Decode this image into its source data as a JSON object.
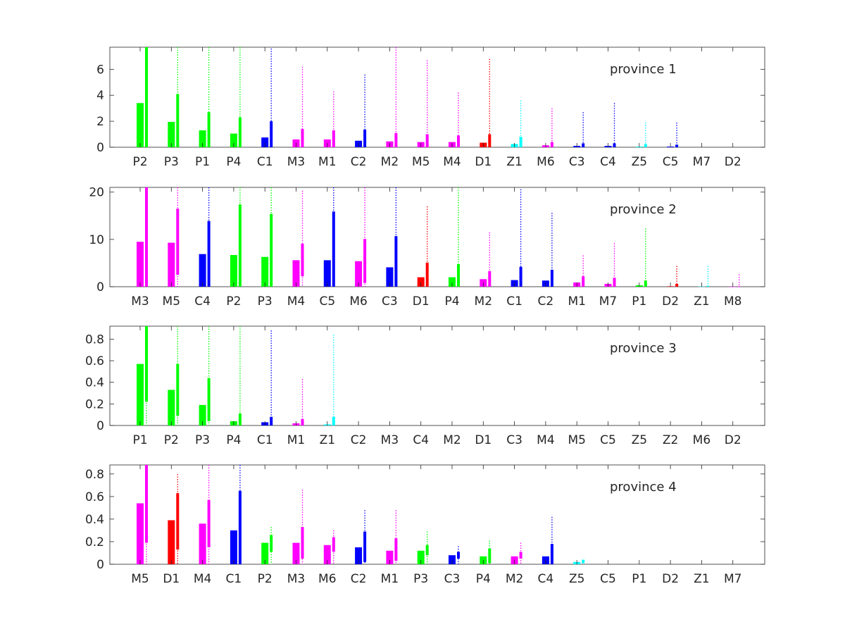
{
  "colors": {
    "P": "#00ff00",
    "C": "#0000ff",
    "M": "#ff00ff",
    "D": "#ff0000",
    "Z": "#00ffff"
  },
  "chart_data": [
    {
      "type": "bar",
      "annotation": "province 1",
      "ylim": [
        0,
        7.7
      ],
      "yticks": [
        0,
        2,
        4,
        6
      ],
      "categories": [
        "P2",
        "P3",
        "P1",
        "P4",
        "C1",
        "M3",
        "M1",
        "C2",
        "M2",
        "M5",
        "M4",
        "D1",
        "Z1",
        "M6",
        "C3",
        "C4",
        "Z5",
        "C5",
        "M7",
        "D2"
      ],
      "values": [
        3.4,
        1.95,
        1.3,
        1.05,
        0.75,
        0.6,
        0.6,
        0.5,
        0.45,
        0.4,
        0.4,
        0.35,
        0.25,
        0.15,
        0.1,
        0.1,
        0.05,
        0.05,
        0,
        0
      ],
      "range_low": [
        0,
        0,
        0,
        0,
        0,
        0,
        0,
        0,
        0,
        0,
        0,
        0,
        0,
        0,
        0,
        0,
        0,
        0,
        0,
        0
      ],
      "range_high": [
        7.7,
        4.1,
        2.7,
        2.3,
        2.0,
        1.4,
        1.3,
        1.35,
        1.1,
        1.0,
        0.9,
        1.0,
        0.8,
        0.4,
        0.3,
        0.3,
        0.25,
        0.2,
        0,
        0
      ],
      "whisker_top": [
        7.7,
        7.7,
        7.7,
        7.7,
        7.6,
        6.2,
        4.3,
        5.6,
        7.7,
        6.7,
        4.2,
        6.8,
        3.6,
        3.0,
        2.7,
        3.4,
        1.9,
        1.9,
        0,
        0
      ]
    },
    {
      "type": "bar",
      "annotation": "province 2",
      "ylim": [
        0,
        21
      ],
      "yticks": [
        0,
        10,
        20
      ],
      "categories": [
        "M3",
        "M5",
        "C4",
        "P2",
        "P3",
        "M4",
        "C5",
        "M6",
        "C3",
        "D1",
        "P4",
        "M2",
        "C1",
        "C2",
        "M1",
        "M7",
        "P1",
        "D2",
        "Z1",
        "M8"
      ],
      "values": [
        9.5,
        9.3,
        6.9,
        6.7,
        6.3,
        5.6,
        5.6,
        5.4,
        4.1,
        2.0,
        2.0,
        1.6,
        1.4,
        1.3,
        0.9,
        0.6,
        0.3,
        0.1,
        0.05,
        0.02
      ],
      "range_low": [
        0,
        2.5,
        0,
        0,
        0,
        2.2,
        0,
        0.8,
        0,
        0,
        0,
        0,
        0,
        0,
        0,
        0,
        0,
        0,
        0,
        0
      ],
      "range_high": [
        21,
        16.5,
        13.9,
        17.4,
        15.4,
        9.1,
        15.9,
        10.1,
        10.7,
        5.1,
        4.8,
        3.3,
        4.2,
        3.6,
        2.2,
        1.9,
        1.3,
        0.6,
        0.2,
        0.1
      ],
      "whisker_top": [
        21,
        21,
        21,
        21,
        21,
        20.3,
        21,
        21,
        21,
        17.0,
        21,
        11.5,
        20.6,
        15.6,
        6.6,
        9.2,
        12.3,
        4.4,
        4.4,
        2.6
      ]
    },
    {
      "type": "bar",
      "annotation": "province 3",
      "ylim": [
        0,
        0.92
      ],
      "yticks": [
        0,
        0.2,
        0.4,
        0.6,
        0.8
      ],
      "categories": [
        "P1",
        "P2",
        "P3",
        "P4",
        "C1",
        "M1",
        "Z1",
        "C2",
        "M3",
        "C4",
        "M2",
        "D1",
        "C3",
        "M4",
        "M5",
        "C5",
        "Z5",
        "Z2",
        "M6",
        "D2"
      ],
      "values": [
        0.57,
        0.33,
        0.19,
        0.04,
        0.03,
        0.02,
        0.01,
        0,
        0,
        0,
        0,
        0,
        0,
        0,
        0,
        0,
        0,
        0,
        0,
        0
      ],
      "range_low": [
        0.22,
        0.09,
        0.04,
        0,
        0,
        0,
        0,
        0,
        0,
        0,
        0,
        0,
        0,
        0,
        0,
        0,
        0,
        0,
        0,
        0
      ],
      "range_high": [
        0.92,
        0.57,
        0.44,
        0.11,
        0.08,
        0.06,
        0.08,
        0,
        0,
        0,
        0,
        0,
        0,
        0,
        0,
        0,
        0,
        0,
        0,
        0
      ],
      "whisker_top": [
        0.92,
        0.92,
        0.92,
        0.92,
        0.88,
        0.43,
        0.84,
        0,
        0,
        0,
        0,
        0,
        0,
        0,
        0,
        0,
        0,
        0,
        0,
        0
      ]
    },
    {
      "type": "bar",
      "annotation": "province 4",
      "ylim": [
        0,
        0.88
      ],
      "yticks": [
        0,
        0.2,
        0.4,
        0.6,
        0.8
      ],
      "categories": [
        "M5",
        "D1",
        "M4",
        "C1",
        "P2",
        "M3",
        "M6",
        "C2",
        "M1",
        "P3",
        "C3",
        "P4",
        "M2",
        "C4",
        "Z5",
        "C5",
        "P1",
        "D2",
        "Z1",
        "M7"
      ],
      "values": [
        0.54,
        0.39,
        0.36,
        0.3,
        0.19,
        0.19,
        0.17,
        0.15,
        0.12,
        0.12,
        0.08,
        0.07,
        0.07,
        0.07,
        0.02,
        0,
        0,
        0,
        0,
        0
      ],
      "range_low": [
        0.19,
        0.13,
        0.15,
        0,
        0.11,
        0.05,
        0.11,
        0.02,
        0.03,
        0.08,
        0.05,
        0.01,
        0.05,
        0,
        0.01,
        0,
        0,
        0,
        0,
        0
      ],
      "range_high": [
        0.88,
        0.63,
        0.57,
        0.65,
        0.26,
        0.33,
        0.24,
        0.29,
        0.23,
        0.17,
        0.11,
        0.14,
        0.11,
        0.18,
        0.04,
        0,
        0,
        0,
        0,
        0
      ],
      "whisker_top": [
        0.88,
        0.8,
        0.88,
        0.88,
        0.33,
        0.66,
        0.3,
        0.48,
        0.48,
        0.29,
        0.16,
        0.21,
        0.19,
        0.42,
        0.04,
        0,
        0,
        0,
        0,
        0
      ]
    }
  ]
}
